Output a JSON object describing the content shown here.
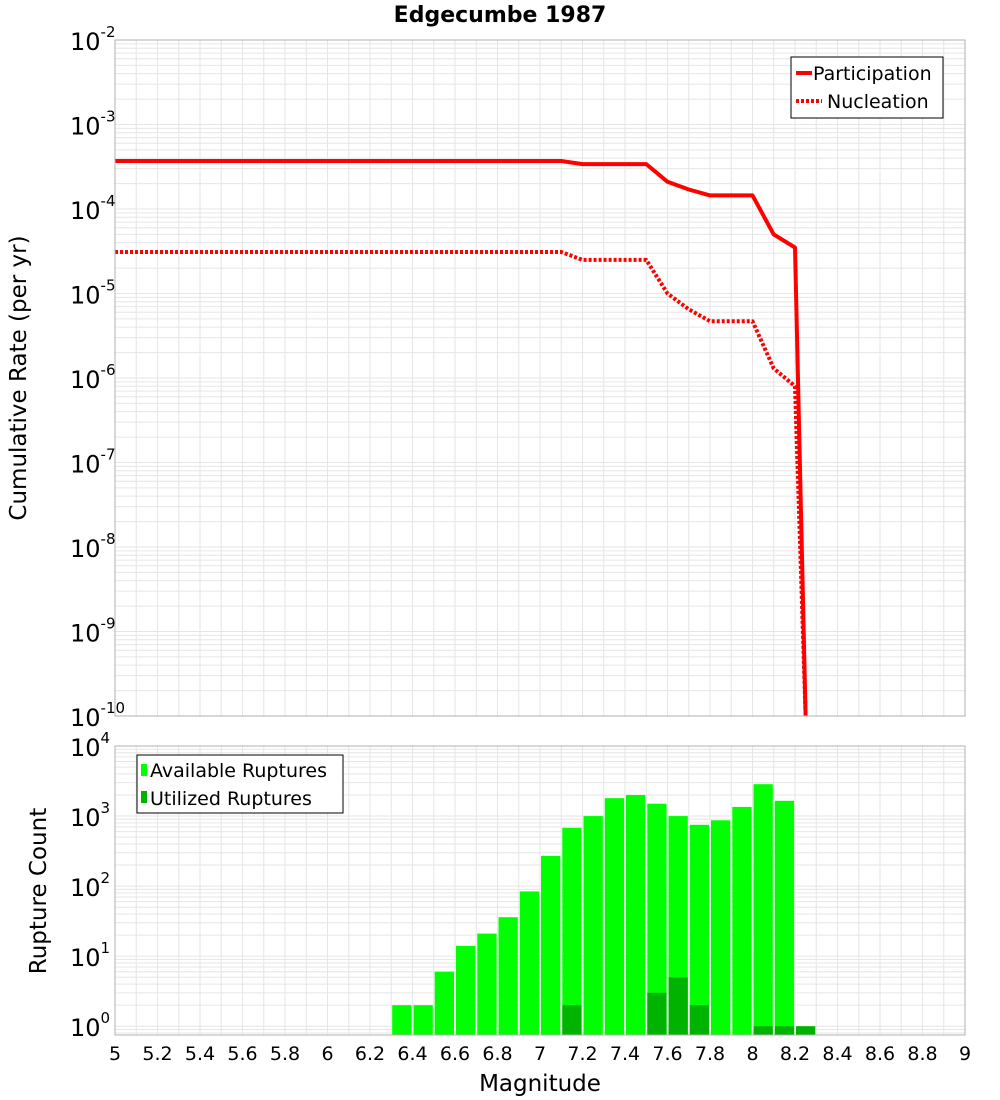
{
  "colors": {
    "participation": "#ff0000",
    "nucleation": "#ff0000",
    "available": "#00ff00",
    "utilized": "#00b300",
    "grid": "#e6e6e6",
    "frame": "#b0b0b0"
  },
  "chart_data": [
    {
      "type": "line",
      "title": "Edgecumbe 1987",
      "ylabel": "Cumulative Rate (per yr)",
      "xlabel": "",
      "xlim": [
        5,
        9
      ],
      "ylim": [
        1e-10,
        0.01
      ],
      "yscale": "log",
      "grid": true,
      "legend": "top-right",
      "ytick_labels": [
        {
          "base": "10",
          "exp": "-2"
        },
        {
          "base": "10",
          "exp": "-3"
        },
        {
          "base": "10",
          "exp": "-4"
        },
        {
          "base": "10",
          "exp": "-5"
        },
        {
          "base": "10",
          "exp": "-6"
        },
        {
          "base": "10",
          "exp": "-7"
        },
        {
          "base": "10",
          "exp": "-8"
        },
        {
          "base": "10",
          "exp": "-9"
        },
        {
          "base": "10",
          "exp": "-10"
        }
      ],
      "series": [
        {
          "name": "Participation",
          "style": "solid",
          "x": [
            5.0,
            7.1,
            7.2,
            7.5,
            7.6,
            7.7,
            7.8,
            8.0,
            8.1,
            8.2,
            8.25
          ],
          "y": [
            0.00037,
            0.00037,
            0.00034,
            0.00034,
            0.00021,
            0.00017,
            0.000145,
            0.000145,
            5e-05,
            3.5e-05,
            1e-10
          ]
        },
        {
          "name": "Nucleation",
          "style": "dotted",
          "x": [
            5.0,
            7.1,
            7.2,
            7.5,
            7.6,
            7.7,
            7.8,
            8.0,
            8.1,
            8.2,
            8.25
          ],
          "y": [
            3.1e-05,
            3.1e-05,
            2.5e-05,
            2.5e-05,
            1e-05,
            6.5e-06,
            4.7e-06,
            4.7e-06,
            1.3e-06,
            8e-07,
            1e-10
          ]
        }
      ]
    },
    {
      "type": "bar",
      "title": "",
      "ylabel": "Rupture Count",
      "xlabel": "Magnitude",
      "xlim": [
        5,
        9
      ],
      "ylim": [
        0.75,
        10000
      ],
      "yscale": "log",
      "grid": true,
      "legend": "top-left",
      "x_ticks": [
        "5",
        "5.2",
        "5.4",
        "5.6",
        "5.8",
        "6",
        "6.2",
        "6.4",
        "6.6",
        "6.8",
        "7",
        "7.2",
        "7.4",
        "7.6",
        "7.8",
        "8",
        "8.2",
        "8.4",
        "8.6",
        "8.8",
        "9"
      ],
      "ytick_labels": [
        {
          "base": "10",
          "exp": "4"
        },
        {
          "base": "10",
          "exp": "3"
        },
        {
          "base": "10",
          "exp": "2"
        },
        {
          "base": "10",
          "exp": "1"
        },
        {
          "base": "10",
          "exp": "0"
        }
      ],
      "bar_width": 0.1,
      "series": [
        {
          "name": "Available Ruptures",
          "x": [
            6.35,
            6.45,
            6.55,
            6.65,
            6.75,
            6.85,
            6.95,
            7.05,
            7.15,
            7.25,
            7.35,
            7.45,
            7.55,
            7.65,
            7.75,
            7.85,
            7.95,
            8.05,
            8.15
          ],
          "values": [
            2,
            2,
            6,
            14,
            21,
            36,
            84,
            270,
            680,
            1000,
            1800,
            2000,
            1500,
            1000,
            750,
            870,
            1350,
            2850,
            1650
          ]
        },
        {
          "name": "Utilized Ruptures",
          "x": [
            7.15,
            7.55,
            7.65,
            7.75,
            8.05,
            8.15,
            8.25
          ],
          "values": [
            2,
            3,
            5,
            2,
            1,
            1,
            1
          ]
        }
      ]
    }
  ]
}
